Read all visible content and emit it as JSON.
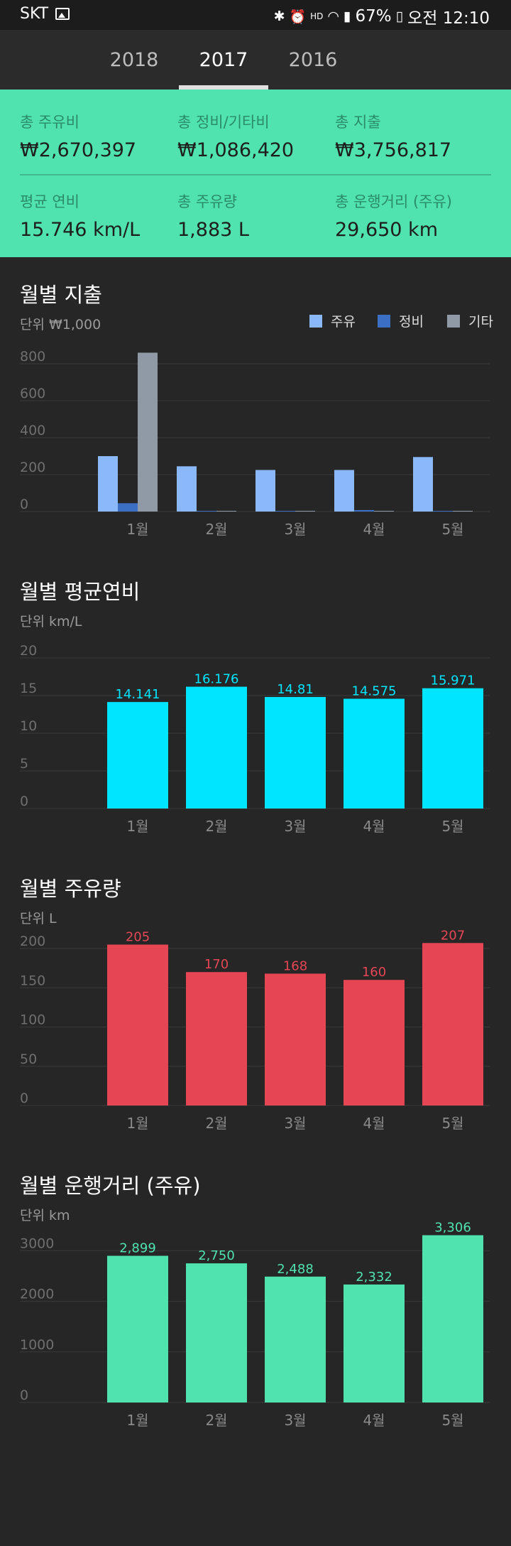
{
  "status_bar": {
    "carrier": "SKT",
    "battery": "67%",
    "time": "오전 12:10"
  },
  "tabs": [
    {
      "label": "2018",
      "active": false
    },
    {
      "label": "2017",
      "active": true
    },
    {
      "label": "2016",
      "active": false
    }
  ],
  "summary": {
    "total_fuel_cost": {
      "label": "총 주유비",
      "value": "₩2,670,397"
    },
    "total_maintenance": {
      "label": "총 정비/기타비",
      "value": "₩1,086,420"
    },
    "total_spent": {
      "label": "총 지출",
      "value": "₩3,756,817"
    },
    "avg_efficiency": {
      "label": "평균 연비",
      "value": "15.746 km/L"
    },
    "total_fuel": {
      "label": "총 주유량",
      "value": "1,883 L"
    },
    "total_distance": {
      "label": "총 운행거리 (주유)",
      "value": "29,650 km"
    }
  },
  "colors": {
    "accent_green": "#50e3b0",
    "fuel_blue": "#8ab8f8",
    "maintenance_blue": "#3a6fc4",
    "other_gray": "#8f9aa6",
    "efficiency_cyan": "#00e5ff",
    "fuel_red": "#e64654",
    "distance_green": "#50e3b0"
  },
  "charts": {
    "spending": {
      "title": "월별 지출",
      "unit": "단위 ₩1,000",
      "legend": [
        "주유",
        "정비",
        "기타"
      ]
    },
    "efficiency": {
      "title": "월별 평균연비",
      "unit": "단위 km/L"
    },
    "fuel": {
      "title": "월별 주유량",
      "unit": "단위 L"
    },
    "distance": {
      "title": "월별 운행거리 (주유)",
      "unit": "단위 km"
    }
  },
  "chart_data": [
    {
      "type": "bar",
      "title": "월별 지출",
      "ylabel": "단위 ₩1,000",
      "categories": [
        "1월",
        "2월",
        "3월",
        "4월",
        "5월"
      ],
      "series": [
        {
          "name": "주유",
          "values": [
            300,
            245,
            225,
            225,
            295
          ]
        },
        {
          "name": "정비",
          "values": [
            45,
            0,
            0,
            8,
            0
          ]
        },
        {
          "name": "기타",
          "values": [
            860,
            0,
            0,
            0,
            0
          ]
        }
      ],
      "yticks": [
        0,
        200,
        400,
        600,
        800
      ],
      "ylim": [
        0,
        900
      ],
      "legend": "top-right",
      "grid": true
    },
    {
      "type": "bar",
      "title": "월별 평균연비",
      "ylabel": "단위 km/L",
      "categories": [
        "1월",
        "2월",
        "3월",
        "4월",
        "5월"
      ],
      "values": [
        14.141,
        16.176,
        14.81,
        14.575,
        15.971
      ],
      "labels": [
        "14.141",
        "16.176",
        "14.81",
        "14.575",
        "15.971"
      ],
      "yticks": [
        0,
        5,
        10,
        15,
        20
      ],
      "ylim": [
        0,
        20
      ],
      "grid": true
    },
    {
      "type": "bar",
      "title": "월별 주유량",
      "ylabel": "단위 L",
      "categories": [
        "1월",
        "2월",
        "3월",
        "4월",
        "5월"
      ],
      "values": [
        205,
        170,
        168,
        160,
        207
      ],
      "labels": [
        "205",
        "170",
        "168",
        "160",
        "207"
      ],
      "yticks": [
        0,
        50,
        100,
        150,
        200
      ],
      "ylim": [
        0,
        210
      ],
      "grid": true
    },
    {
      "type": "bar",
      "title": "월별 운행거리 (주유)",
      "ylabel": "단위 km",
      "categories": [
        "1월",
        "2월",
        "3월",
        "4월",
        "5월"
      ],
      "values": [
        2899,
        2750,
        2488,
        2332,
        3306
      ],
      "labels": [
        "2,899",
        "2,750",
        "2,488",
        "2,332",
        "3,306"
      ],
      "yticks": [
        0,
        1000,
        2000,
        3000
      ],
      "ylim": [
        0,
        3300
      ],
      "grid": true
    }
  ]
}
